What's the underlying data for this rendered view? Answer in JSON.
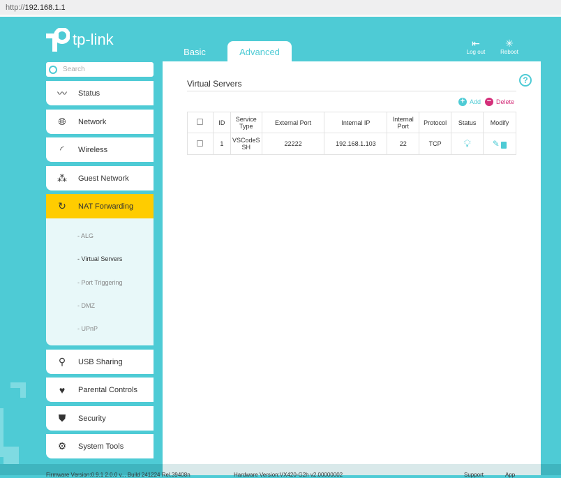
{
  "browser": {
    "url_prefix": "http://",
    "url_host": "192.168.1.1"
  },
  "brand": {
    "logo_text": "tp-link"
  },
  "tabs": [
    {
      "label": "Basic"
    },
    {
      "label": "Advanced",
      "active": true
    }
  ],
  "top_buttons": [
    {
      "label": "Log out",
      "icon": "logout-icon"
    },
    {
      "label": "Reboot",
      "icon": "reboot-icon"
    }
  ],
  "search": {
    "placeholder": "Search"
  },
  "sidebar": {
    "items": [
      {
        "label": "Status",
        "icon": "pulse-icon"
      },
      {
        "label": "Network",
        "icon": "globe-icon"
      },
      {
        "label": "Wireless",
        "icon": "wifi-icon"
      },
      {
        "label": "Guest Network",
        "icon": "guests-icon"
      },
      {
        "label": "NAT Forwarding",
        "icon": "nat-icon",
        "active": true
      },
      {
        "label": "USB Sharing",
        "icon": "usb-icon"
      },
      {
        "label": "Parental Controls",
        "icon": "heart-icon"
      },
      {
        "label": "Security",
        "icon": "shield-icon"
      },
      {
        "label": "System Tools",
        "icon": "gear-icon"
      }
    ],
    "submenu": [
      {
        "label": "- ALG"
      },
      {
        "label": "- Virtual Servers",
        "active": true
      },
      {
        "label": "- Port Triggering"
      },
      {
        "label": "- DMZ"
      },
      {
        "label": "- UPnP"
      }
    ]
  },
  "main": {
    "title": "Virtual Servers",
    "add_label": "Add",
    "delete_label": "Delete",
    "table": {
      "headers": [
        "ID",
        "Service Type",
        "External Port",
        "Internal IP",
        "Internal Port",
        "Protocol",
        "Status",
        "Modify"
      ],
      "rows": [
        {
          "id": "1",
          "service_type": "VSCodeSSH",
          "external_port": "22222",
          "internal_ip": "192.168.1.103",
          "internal_port": "22",
          "protocol": "TCP",
          "status": "enabled"
        }
      ]
    }
  },
  "footer": {
    "firmware": "Firmware Version:0.9.1 2.0.0 v... Build 241224 Rel.39408n",
    "hardware": "Hardware Version:VX420-G2h v2.00000002",
    "support": "Support",
    "app": "App"
  },
  "colors": {
    "accent": "#4ecbd5",
    "active_menu": "#ffcc00",
    "delete": "#d42f7a"
  }
}
